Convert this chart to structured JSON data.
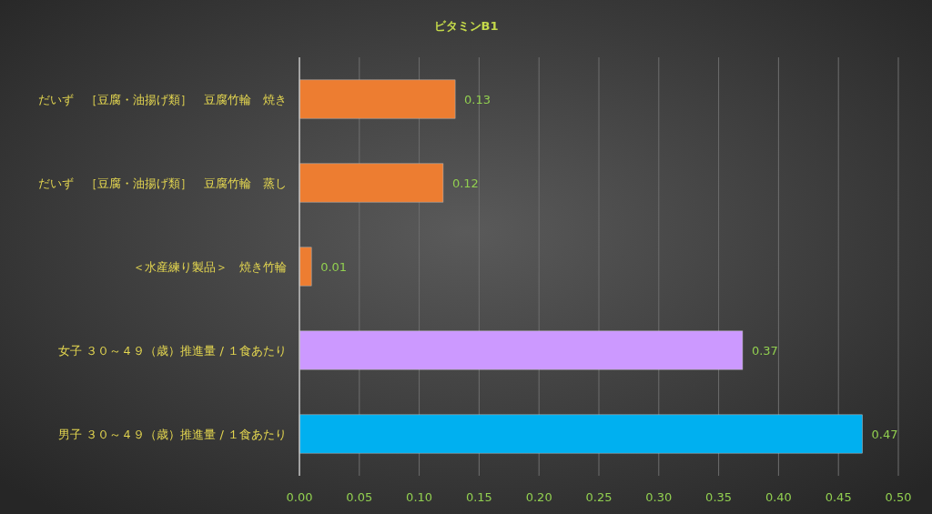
{
  "chart_data": {
    "type": "bar",
    "orientation": "horizontal",
    "title": "ビタミンB1",
    "categories": [
      "だいず　［豆腐・油揚げ類］　豆腐竹輪　焼き",
      "だいず　［豆腐・油揚げ類］　豆腐竹輪　蒸し",
      "＜水産練り製品＞　焼き竹輪",
      "女子 ３０～４９（歳）推進量 / １食あたり",
      "男子 ３０～４９（歳）推進量 / １食あたり"
    ],
    "values": [
      0.13,
      0.12,
      0.01,
      0.37,
      0.47
    ],
    "colors": [
      "#ed7d31",
      "#ed7d31",
      "#ed7d31",
      "#cc99ff",
      "#00b0f0"
    ],
    "xlim": [
      0,
      0.5
    ],
    "xticks": [
      {
        "value": 0,
        "label": "0.00"
      },
      {
        "value": 0.05,
        "label": "0.05"
      },
      {
        "value": 0.1,
        "label": "0.10"
      },
      {
        "value": 0.15,
        "label": "0.15"
      },
      {
        "value": 0.2,
        "label": "0.20"
      },
      {
        "value": 0.25,
        "label": "0.25"
      },
      {
        "value": 0.3,
        "label": "0.30"
      },
      {
        "value": 0.35,
        "label": "0.35"
      },
      {
        "value": 0.4,
        "label": "0.40"
      },
      {
        "value": 0.45,
        "label": "0.45"
      },
      {
        "value": 0.5,
        "label": "0.50"
      }
    ],
    "grid": "x",
    "data_labels": true
  }
}
